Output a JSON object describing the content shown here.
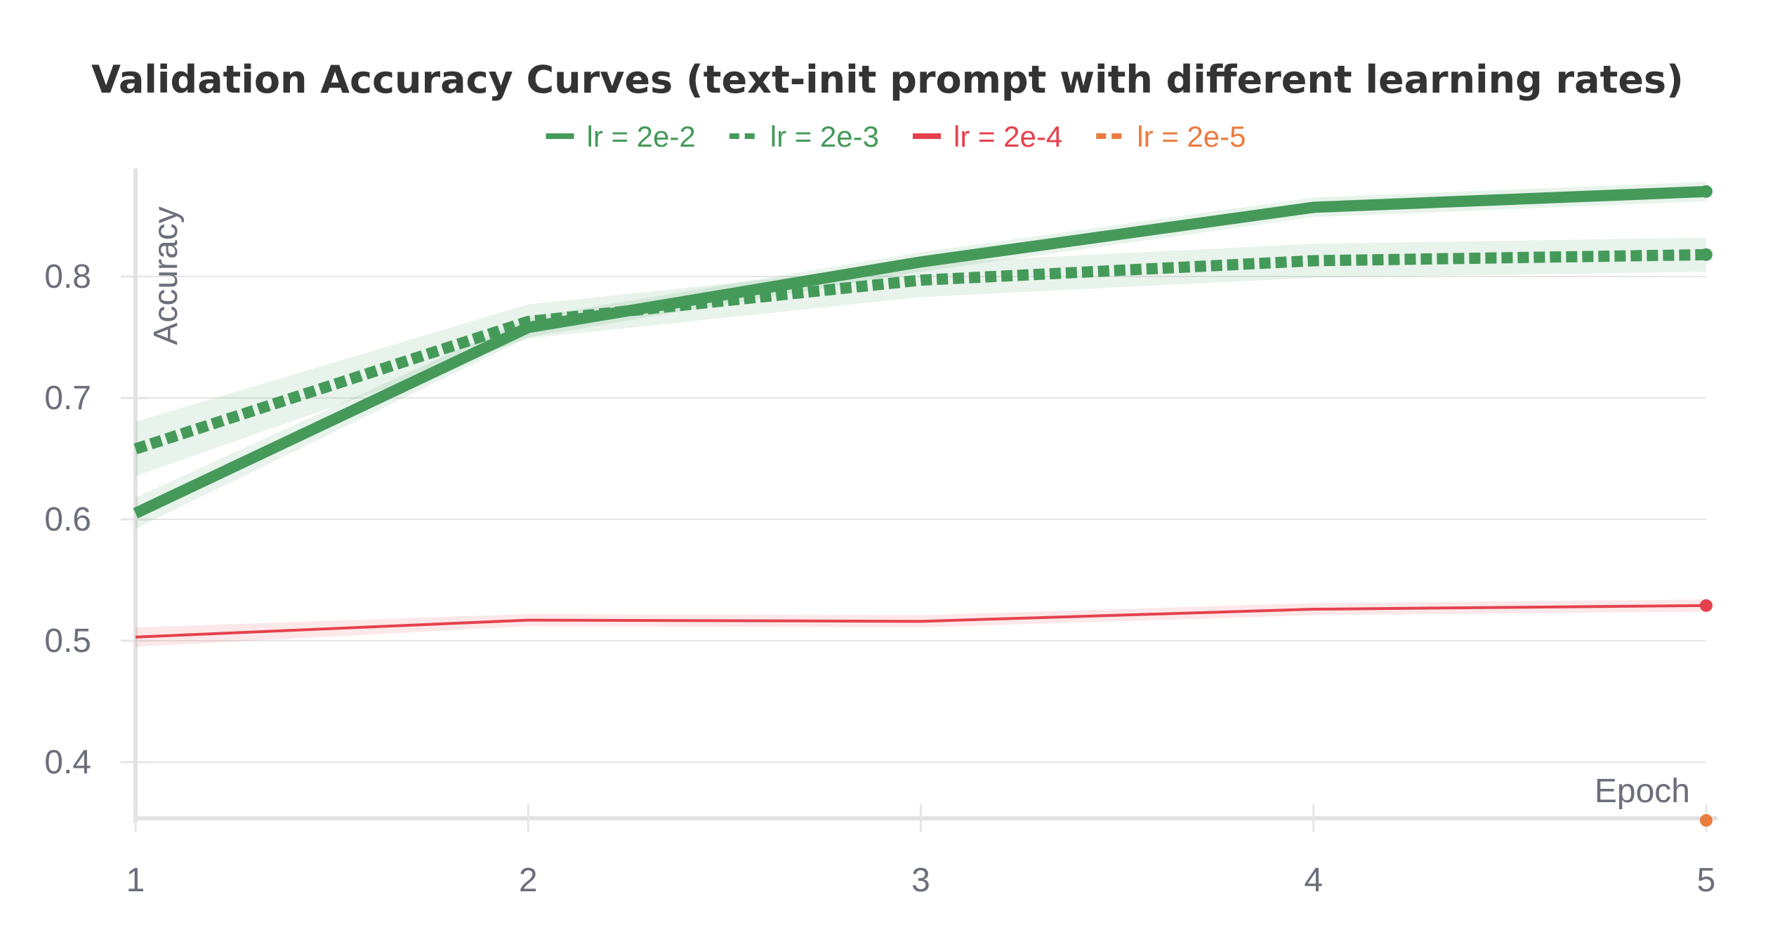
{
  "chart_data": {
    "type": "line",
    "title": "Validation Accuracy Curves (text-init prompt with different learning rates)",
    "xlabel": "Epoch",
    "ylabel": "Accuracy",
    "x": [
      1,
      2,
      3,
      4,
      5
    ],
    "xlim": [
      1,
      5
    ],
    "ylim": [
      0.35,
      0.88
    ],
    "xticks": [
      "1",
      "2",
      "3",
      "4",
      "5"
    ],
    "yticks": [
      "0.4",
      "0.5",
      "0.6",
      "0.7",
      "0.8"
    ],
    "ytick_values": [
      0.4,
      0.5,
      0.6,
      0.7,
      0.8
    ],
    "grid": "horizontal",
    "legend_position": "top-center",
    "series": [
      {
        "name": "lr = 2e-2",
        "color": "#459a5a",
        "style": "solid",
        "weight": "thick",
        "values": [
          0.605,
          0.758,
          0.812,
          0.857,
          0.87
        ],
        "band": 0.008
      },
      {
        "name": "lr = 2e-3",
        "color": "#459a5a",
        "style": "dotted",
        "weight": "thick",
        "values": [
          0.658,
          0.763,
          0.797,
          0.813,
          0.818
        ],
        "band": 0.014
      },
      {
        "name": "lr = 2e-4",
        "color": "#e5414d",
        "style": "solid",
        "weight": "thin",
        "values": [
          0.503,
          0.517,
          0.516,
          0.526,
          0.529
        ],
        "band": 0.005
      },
      {
        "name": "lr = 2e-5",
        "color": "#ea7c3f",
        "style": "dashed",
        "weight": "thin",
        "values": [
          null,
          null,
          null,
          null,
          0.352
        ],
        "band": 0
      }
    ]
  }
}
